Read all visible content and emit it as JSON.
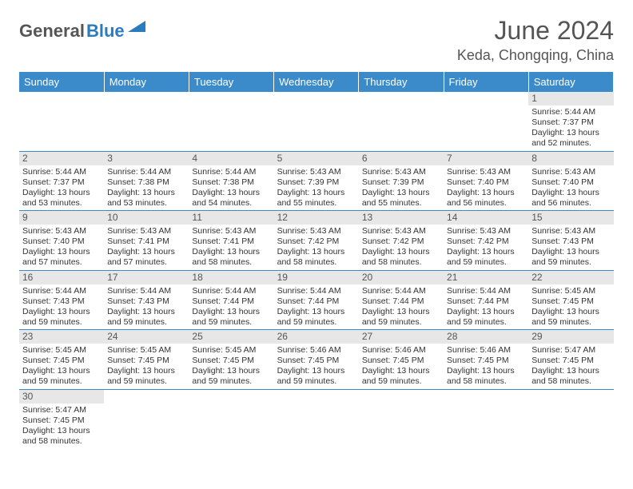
{
  "brand": {
    "name_part1": "General",
    "name_part2": "Blue"
  },
  "title": "June 2024",
  "location": "Keda, Chongqing, China",
  "colors": {
    "header_bg": "#3b8bca",
    "header_text": "#ffffff",
    "day_bar_bg": "#e7e7e7",
    "body_text": "#333333",
    "accent": "#2b7bbf",
    "row_border": "#3b8bca",
    "page_bg": "#ffffff"
  },
  "fonts": {
    "body_size_pt": 10.5,
    "title_size_pt": 32,
    "location_size_pt": 18,
    "dayheader_size_pt": 13
  },
  "day_headers": [
    "Sunday",
    "Monday",
    "Tuesday",
    "Wednesday",
    "Thursday",
    "Friday",
    "Saturday"
  ],
  "weeks": [
    [
      null,
      null,
      null,
      null,
      null,
      null,
      {
        "n": "1",
        "sunrise": "Sunrise: 5:44 AM",
        "sunset": "Sunset: 7:37 PM",
        "daylight": "Daylight: 13 hours and 52 minutes."
      }
    ],
    [
      {
        "n": "2",
        "sunrise": "Sunrise: 5:44 AM",
        "sunset": "Sunset: 7:37 PM",
        "daylight": "Daylight: 13 hours and 53 minutes."
      },
      {
        "n": "3",
        "sunrise": "Sunrise: 5:44 AM",
        "sunset": "Sunset: 7:38 PM",
        "daylight": "Daylight: 13 hours and 53 minutes."
      },
      {
        "n": "4",
        "sunrise": "Sunrise: 5:44 AM",
        "sunset": "Sunset: 7:38 PM",
        "daylight": "Daylight: 13 hours and 54 minutes."
      },
      {
        "n": "5",
        "sunrise": "Sunrise: 5:43 AM",
        "sunset": "Sunset: 7:39 PM",
        "daylight": "Daylight: 13 hours and 55 minutes."
      },
      {
        "n": "6",
        "sunrise": "Sunrise: 5:43 AM",
        "sunset": "Sunset: 7:39 PM",
        "daylight": "Daylight: 13 hours and 55 minutes."
      },
      {
        "n": "7",
        "sunrise": "Sunrise: 5:43 AM",
        "sunset": "Sunset: 7:40 PM",
        "daylight": "Daylight: 13 hours and 56 minutes."
      },
      {
        "n": "8",
        "sunrise": "Sunrise: 5:43 AM",
        "sunset": "Sunset: 7:40 PM",
        "daylight": "Daylight: 13 hours and 56 minutes."
      }
    ],
    [
      {
        "n": "9",
        "sunrise": "Sunrise: 5:43 AM",
        "sunset": "Sunset: 7:40 PM",
        "daylight": "Daylight: 13 hours and 57 minutes."
      },
      {
        "n": "10",
        "sunrise": "Sunrise: 5:43 AM",
        "sunset": "Sunset: 7:41 PM",
        "daylight": "Daylight: 13 hours and 57 minutes."
      },
      {
        "n": "11",
        "sunrise": "Sunrise: 5:43 AM",
        "sunset": "Sunset: 7:41 PM",
        "daylight": "Daylight: 13 hours and 58 minutes."
      },
      {
        "n": "12",
        "sunrise": "Sunrise: 5:43 AM",
        "sunset": "Sunset: 7:42 PM",
        "daylight": "Daylight: 13 hours and 58 minutes."
      },
      {
        "n": "13",
        "sunrise": "Sunrise: 5:43 AM",
        "sunset": "Sunset: 7:42 PM",
        "daylight": "Daylight: 13 hours and 58 minutes."
      },
      {
        "n": "14",
        "sunrise": "Sunrise: 5:43 AM",
        "sunset": "Sunset: 7:42 PM",
        "daylight": "Daylight: 13 hours and 59 minutes."
      },
      {
        "n": "15",
        "sunrise": "Sunrise: 5:43 AM",
        "sunset": "Sunset: 7:43 PM",
        "daylight": "Daylight: 13 hours and 59 minutes."
      }
    ],
    [
      {
        "n": "16",
        "sunrise": "Sunrise: 5:44 AM",
        "sunset": "Sunset: 7:43 PM",
        "daylight": "Daylight: 13 hours and 59 minutes."
      },
      {
        "n": "17",
        "sunrise": "Sunrise: 5:44 AM",
        "sunset": "Sunset: 7:43 PM",
        "daylight": "Daylight: 13 hours and 59 minutes."
      },
      {
        "n": "18",
        "sunrise": "Sunrise: 5:44 AM",
        "sunset": "Sunset: 7:44 PM",
        "daylight": "Daylight: 13 hours and 59 minutes."
      },
      {
        "n": "19",
        "sunrise": "Sunrise: 5:44 AM",
        "sunset": "Sunset: 7:44 PM",
        "daylight": "Daylight: 13 hours and 59 minutes."
      },
      {
        "n": "20",
        "sunrise": "Sunrise: 5:44 AM",
        "sunset": "Sunset: 7:44 PM",
        "daylight": "Daylight: 13 hours and 59 minutes."
      },
      {
        "n": "21",
        "sunrise": "Sunrise: 5:44 AM",
        "sunset": "Sunset: 7:44 PM",
        "daylight": "Daylight: 13 hours and 59 minutes."
      },
      {
        "n": "22",
        "sunrise": "Sunrise: 5:45 AM",
        "sunset": "Sunset: 7:45 PM",
        "daylight": "Daylight: 13 hours and 59 minutes."
      }
    ],
    [
      {
        "n": "23",
        "sunrise": "Sunrise: 5:45 AM",
        "sunset": "Sunset: 7:45 PM",
        "daylight": "Daylight: 13 hours and 59 minutes."
      },
      {
        "n": "24",
        "sunrise": "Sunrise: 5:45 AM",
        "sunset": "Sunset: 7:45 PM",
        "daylight": "Daylight: 13 hours and 59 minutes."
      },
      {
        "n": "25",
        "sunrise": "Sunrise: 5:45 AM",
        "sunset": "Sunset: 7:45 PM",
        "daylight": "Daylight: 13 hours and 59 minutes."
      },
      {
        "n": "26",
        "sunrise": "Sunrise: 5:46 AM",
        "sunset": "Sunset: 7:45 PM",
        "daylight": "Daylight: 13 hours and 59 minutes."
      },
      {
        "n": "27",
        "sunrise": "Sunrise: 5:46 AM",
        "sunset": "Sunset: 7:45 PM",
        "daylight": "Daylight: 13 hours and 59 minutes."
      },
      {
        "n": "28",
        "sunrise": "Sunrise: 5:46 AM",
        "sunset": "Sunset: 7:45 PM",
        "daylight": "Daylight: 13 hours and 58 minutes."
      },
      {
        "n": "29",
        "sunrise": "Sunrise: 5:47 AM",
        "sunset": "Sunset: 7:45 PM",
        "daylight": "Daylight: 13 hours and 58 minutes."
      }
    ],
    [
      {
        "n": "30",
        "sunrise": "Sunrise: 5:47 AM",
        "sunset": "Sunset: 7:45 PM",
        "daylight": "Daylight: 13 hours and 58 minutes."
      },
      null,
      null,
      null,
      null,
      null,
      null
    ]
  ]
}
